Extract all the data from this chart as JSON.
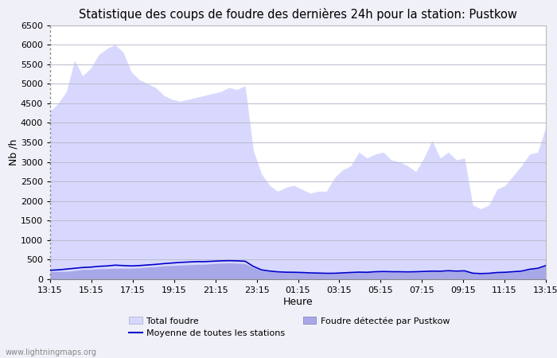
{
  "title": "Statistique des coups de foudre des dernières 24h pour la station: Pustkow",
  "xlabel": "Heure",
  "ylabel": "Nb /h",
  "ylim": [
    0,
    6500
  ],
  "yticks": [
    0,
    500,
    1000,
    1500,
    2000,
    2500,
    3000,
    3500,
    4000,
    4500,
    5000,
    5500,
    6000,
    6500
  ],
  "xtick_labels_display": [
    "13:15",
    "15:15",
    "17:15",
    "19:15",
    "21:15",
    "23:15",
    "01:15",
    "03:15",
    "05:15",
    "07:15",
    "09:15",
    "11:15",
    "13:15"
  ],
  "bg_color": "#f0f0f8",
  "plot_bg_color": "#ffffff",
  "grid_color": "#bbbbcc",
  "total_foudre_color": "#d8d8ff",
  "pustkow_color": "#a8a8e8",
  "moyenne_color": "#0000cc",
  "watermark": "www.lightningmaps.org",
  "legend_total": "Total foudre",
  "legend_moyenne": "Moyenne de toutes les stations",
  "legend_pustkow": "Foudre détectée par Pustkow",
  "total_foudre": [
    4300,
    4500,
    4800,
    5600,
    5200,
    5400,
    5750,
    5900,
    6000,
    5800,
    5300,
    5100,
    5000,
    4900,
    4700,
    4600,
    4550,
    4600,
    4650,
    4700,
    4750,
    4800,
    4900,
    4850,
    4950,
    3300,
    2700,
    2400,
    2250,
    2350,
    2400,
    2300,
    2200,
    2250,
    2250,
    2600,
    2800,
    2900,
    3250,
    3100,
    3200,
    3250,
    3050,
    3000,
    2900,
    2750,
    3100,
    3550,
    3100,
    3250,
    3050,
    3100,
    1900,
    1800,
    1900,
    2300,
    2400,
    2650,
    2900,
    3200,
    3250,
    3900
  ],
  "pustkow": [
    200,
    200,
    200,
    220,
    250,
    250,
    270,
    270,
    280,
    280,
    280,
    290,
    310,
    320,
    340,
    350,
    360,
    370,
    380,
    380,
    400,
    410,
    420,
    410,
    400,
    300,
    220,
    200,
    180,
    170,
    170,
    165,
    155,
    150,
    145,
    145,
    155,
    165,
    175,
    170,
    185,
    190,
    185,
    185,
    180,
    185,
    190,
    200,
    195,
    210,
    200,
    205,
    150,
    140,
    145,
    165,
    170,
    185,
    200,
    245,
    270,
    340
  ],
  "moyenne": [
    230,
    240,
    260,
    280,
    300,
    310,
    330,
    340,
    360,
    350,
    340,
    350,
    365,
    380,
    400,
    415,
    430,
    440,
    450,
    450,
    460,
    470,
    475,
    470,
    460,
    330,
    240,
    210,
    190,
    180,
    178,
    172,
    163,
    158,
    152,
    153,
    163,
    173,
    182,
    178,
    192,
    198,
    193,
    192,
    188,
    192,
    200,
    208,
    205,
    218,
    208,
    215,
    155,
    145,
    152,
    172,
    178,
    193,
    208,
    255,
    280,
    350
  ]
}
